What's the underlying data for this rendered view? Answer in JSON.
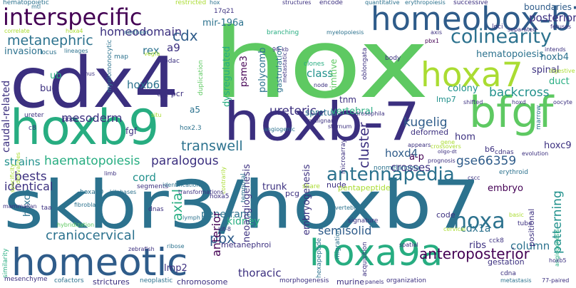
{
  "words": {
    "hox": "hox",
    "skbr3_hoxb7": "skbr3/hoxb7",
    "cdx4": "cdx4",
    "hoxb7_dash": "hoxb-7",
    "hoxb9": "hoxb9",
    "homeobox_b7": "homeobox-b7",
    "homeotic": "homeotic",
    "hoxa9a": "hoxa9a",
    "bfgf": "bfgf",
    "hoxa7": "hoxa7",
    "interspecific": "interspecific",
    "colinearity": "colinearity",
    "antennapedia": "antennapedia",
    "hoxa": "hoxa",
    "anteroposterior": "anteroposterior",
    "homeodomain": "homeodomain",
    "metanephric": "metanephric",
    "invasion": "invasion",
    "cdx": "cdx",
    "rex": "rex",
    "a9": "a9",
    "posterior": "posterior",
    "boundaries": "boundaries",
    "hematopoiesis": "hematopoiesis",
    "backcross": "backcross",
    "hoxb4": "hoxb4",
    "spinal": "spinal",
    "duct": "duct",
    "colony": "colony",
    "lmp7": "lmp7",
    "kugelig": "kugelig",
    "hoxc9": "hoxc9",
    "mesoderm": "mesoderm",
    "hoxb6": "hoxb6",
    "ureteric": "ureteric",
    "spretus": "spretus",
    "paralogous": "paralogous",
    "transwell": "transwell",
    "cluster": "cluster",
    "hoxd4": "hoxd4",
    "a_p": "a-p",
    "gse66359": "gse66359",
    "bests": "bests",
    "strains": "strains",
    "haematopoiesis": "haematopoiesis",
    "identical": "identical",
    "cord": "cord",
    "axial": "axial",
    "crosses": "crosses",
    "embryo": "embryo",
    "kidney": "kidney",
    "penetrance": "penetrance",
    "pbx": "pbx",
    "semisolid": "semisolid",
    "cdx1a": "cdx1a",
    "column": "column",
    "ribs": "ribs",
    "patterning": "patterning",
    "positional": "positional",
    "craniocervical": "craniocervical",
    "lmp2": "lmp2",
    "thoracic": "thoracic",
    "neoangiogenesis": "neoangiogenesis",
    "embryogenesis": "embryogenesis",
    "caudal_related": "caudal-related",
    "psme3": "psme3",
    "polycomb": "polycomb",
    "dysregulated": "dysregulated",
    "gastrulation": "gastrulation",
    "primitive": "primitive",
    "class": "class",
    "vertebral": "vertebral",
    "mir_196a": "mir-196a",
    "hematopoietic": "hematopoietic",
    "restricted": "restricted",
    "structures": "structures",
    "encode": "encode",
    "quantitative": "quantitative",
    "erythropoiesis": "erythropoiesis",
    "successive": "successive",
    "hox_top": "hox",
    "17q21": "17q21",
    "loci": "loci",
    "separated": "separated",
    "fetuses": "fetuses",
    "correlate": "correlate",
    "hoxa4": "hoxa4",
    "locus": "locus",
    "northern": "northern",
    "branching": "branching",
    "myelopoiesis": "myelopoiesis",
    "axis": "axis",
    "pbx1": "pbx1",
    "intends": "intends",
    "lineages": "lineages",
    "map": "map",
    "90_kb": "90-kb",
    "body": "body",
    "myelomonocytic": "myelomonocytic",
    "vegfa": "vegfa",
    "pdac": "pdac",
    "duplication": "duplication",
    "clones": "clones",
    "oblongata": "oblongata",
    "digestive": "digestive",
    "ub": "ub",
    "mus": "mus",
    "bud": "bud",
    "qrt_pcr": "qrt-pcr",
    "node": "node",
    "metastatic": "metastatic",
    "a5": "a5",
    "situ": "situ",
    "tnm": "tnm",
    "shifted": "shifted",
    "hoxd": "hoxd",
    "marrow": "marrow",
    "oocyte": "oocyte",
    "ureter": "ureter",
    "poor": "poor",
    "drosophila": "drosophila",
    "deformed": "deformed",
    "hom": "hom",
    "c8": "c8",
    "fgf": "fgf",
    "hox2_3": "hox2.3",
    "malignant": "malignant",
    "angiogenic": "angiogenic",
    "sternum": "sternum",
    "microarray": "microarray",
    "appears": "appears",
    "gene": "gene",
    "crossovers": "crossovers",
    "b6": "b6",
    "cdnas": "cdnas",
    "evolution": "evolution",
    "cscc": "cscc",
    "erythroid": "erythroid",
    "nonmelanoma": "nonmelanoma",
    "prognosis": "prognosis",
    "oligo_dt": "oligo-dt",
    "segments": "segments",
    "hoxa10": "hoxa10",
    "kilobases": "kilobases",
    "transformations": "transformations",
    "identification": "identification",
    "trunk": "trunk",
    "pcg": "pcg",
    "nude": "nude",
    "pentapeptide": "pentapeptide",
    "limb": "limb",
    "share": "share",
    "temporal": "temporal",
    "contrarily": "contrarily",
    "hoxc6": "hoxc6",
    "fibroblast": "fibroblast",
    "taa": "taa",
    "mammalian": "mammalian",
    "hybridization": "hybridization",
    "specificity": "specificity",
    "derivatives": "derivatives",
    "hoxa5": "hoxa5",
    "dnas": "dnas",
    "lymph": "lymph",
    "kit_8": "kit-8",
    "anterior": "anterior",
    "code": "code",
    "migration": "migration",
    "signature": "signature",
    "cck8": "cck8",
    "basic": "basic",
    "tube": "tube",
    "angiogenesis": "angiogenesis",
    "spatial": "spatial",
    "cervical": "cervical",
    "acquisition": "acquisition",
    "ribose": "ribose",
    "metanephroi": "metanephroi",
    "hexapeptide": "hexapeptide",
    "vertebrae": "vertebrae",
    "zebrafish": "zebrafish",
    "similarity": "similarity",
    "mesenchyme": "mesenchyme",
    "cofactors": "cofactors",
    "strictures": "strictures",
    "neoplastic": "neoplastic",
    "chromosome": "chromosome",
    "morphogenesis": "morphogenesis",
    "murine": "murine",
    "panels": "panels",
    "organization": "organization",
    "gestation": "gestation",
    "metastasis": "metastasis",
    "cdna": "cdna",
    "77_paired": "77-paired",
    "hoxb5": "hoxb5",
    "mtl": "mtl"
  },
  "colors": {
    "dark_purple": "#440154",
    "indigo": "#3b2f7f",
    "blue": "#2f5c8a",
    "teal_blue": "#2c728e",
    "teal": "#21918c",
    "green_teal": "#27ad81",
    "green": "#5ec962",
    "lime": "#aadc32",
    "yellow": "#e3e418"
  }
}
